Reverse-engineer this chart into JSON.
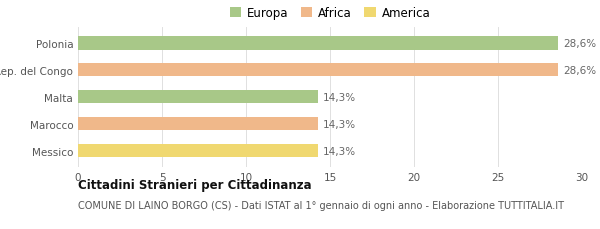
{
  "categories": [
    "Polonia",
    "Rep. del Congo",
    "Malta",
    "Marocco",
    "Messico"
  ],
  "values": [
    28.6,
    28.6,
    14.3,
    14.3,
    14.3
  ],
  "bar_colors": [
    "#a8c888",
    "#f0b88a",
    "#a8c888",
    "#f0b88a",
    "#f0d870"
  ],
  "bar_labels": [
    "28,6%",
    "28,6%",
    "14,3%",
    "14,3%",
    "14,3%"
  ],
  "legend_labels": [
    "Europa",
    "Africa",
    "America"
  ],
  "legend_colors": [
    "#a8c888",
    "#f0b88a",
    "#f0d870"
  ],
  "xlim": [
    0,
    30
  ],
  "xticks": [
    0,
    5,
    10,
    15,
    20,
    25,
    30
  ],
  "title_bold": "Cittadini Stranieri per Cittadinanza",
  "subtitle": "COMUNE DI LAINO BORGO (CS) - Dati ISTAT al 1° gennaio di ogni anno - Elaborazione TUTTITALIA.IT",
  "bg_color": "#ffffff",
  "grid_color": "#e0e0e0",
  "bar_height": 0.5,
  "label_fontsize": 7.5,
  "tick_fontsize": 7.5,
  "legend_fontsize": 8.5,
  "title_fontsize": 8.5,
  "subtitle_fontsize": 7.0
}
